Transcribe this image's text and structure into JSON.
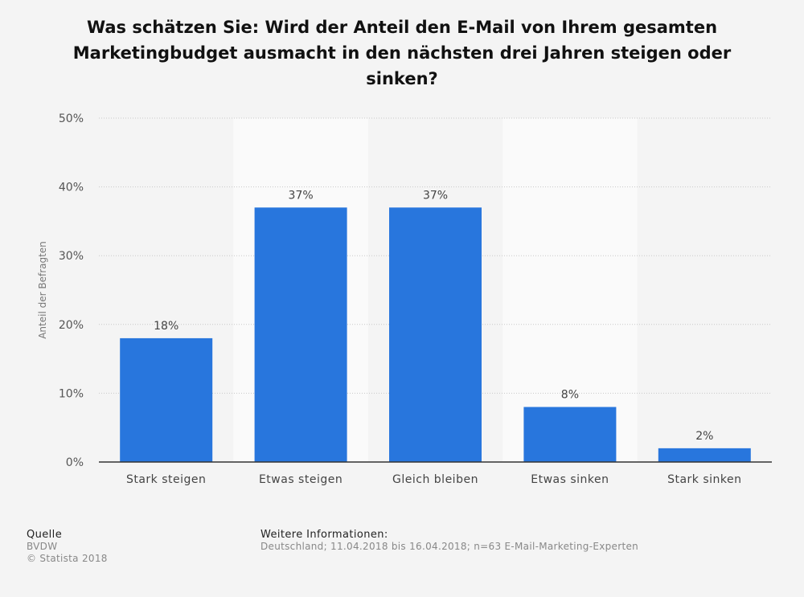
{
  "chart_data": {
    "type": "bar",
    "title": "Was schätzen Sie: Wird der Anteil den E-Mail von Ihrem gesamten Marketingbudget ausmacht in den nächsten drei Jahren steigen oder sinken?",
    "ylabel": "Anteil der Befragten",
    "xlabel": "",
    "ylim": [
      0,
      50
    ],
    "yticks": [
      "0%",
      "10%",
      "20%",
      "30%",
      "40%",
      "50%"
    ],
    "categories": [
      "Stark steigen",
      "Etwas steigen",
      "Gleich bleiben",
      "Etwas sinken",
      "Stark sinken"
    ],
    "values": [
      18,
      37,
      37,
      8,
      2
    ],
    "value_labels": [
      "18%",
      "37%",
      "37%",
      "8%",
      "2%"
    ],
    "bar_color": "#2876dd",
    "grid": true,
    "legend": "none"
  },
  "footer": {
    "source_heading": "Quelle",
    "source": "BVDW",
    "copyright": "© Statista 2018",
    "info_heading": "Weitere Informationen:",
    "info": "Deutschland; 11.04.2018 bis 16.04.2018; n=63 E-Mail-Marketing-Experten"
  }
}
